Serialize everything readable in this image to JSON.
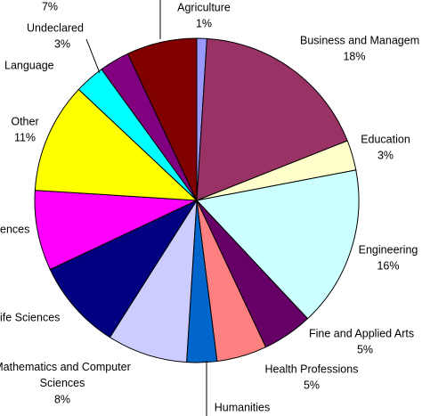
{
  "chart_data": {
    "type": "pie",
    "categories": [
      "Agriculture",
      "Business and Managem",
      "Education",
      "Engineering",
      "Fine and Applied Arts",
      "Health Professions",
      "Humanities",
      "Mathematics and Computer Sciences",
      "ife Sciences",
      "ences",
      "Other",
      "Language",
      "Undeclared",
      null
    ],
    "values": [
      1,
      18,
      3,
      16,
      5,
      5,
      3,
      8,
      9,
      8,
      11,
      3,
      3,
      7
    ],
    "value_labels": [
      "1%",
      "18%",
      "3%",
      "16%",
      "5%",
      "5%",
      null,
      "8%",
      null,
      null,
      "11%",
      null,
      "3%",
      "7%"
    ],
    "colors": [
      "#9999ff",
      "#993366",
      "#ffffcc",
      "#ccffff",
      "#660066",
      "#ff8080",
      "#0066cc",
      "#ccccff",
      "#000080",
      "#ff00ff",
      "#ffff00",
      "#00ffff",
      "#800080",
      "#800000"
    ]
  }
}
